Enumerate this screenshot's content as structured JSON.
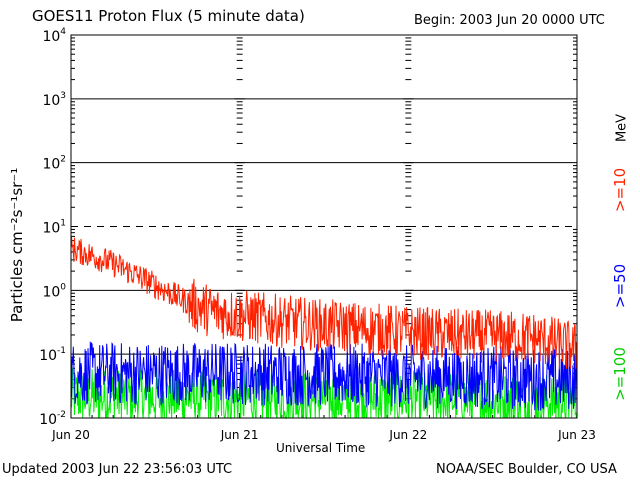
{
  "header": {
    "title": "GOES11 Proton Flux (5 minute data)",
    "begin": "Begin: 2003 Jun 20 0000 UTC"
  },
  "footer": {
    "updated": "Updated 2003 Jun 22 23:56:03 UTC",
    "credit": "NOAA/SEC Boulder, CO USA"
  },
  "chart_data": {
    "type": "line",
    "title": "GOES11 Proton Flux (5 minute data)",
    "xlabel": "Universal Time",
    "ylabel": "Particles cm⁻²s⁻¹sr⁻¹",
    "x_ticks": [
      "Jun 20",
      "Jun 21",
      "Jun 22",
      "Jun 23"
    ],
    "xlim": [
      "2003-06-20 00:00",
      "2003-06-23 00:00"
    ],
    "y_scale": "log",
    "ylim": [
      0.01,
      10000
    ],
    "y_ticks": [
      {
        "base": "10",
        "exp": "-2"
      },
      {
        "base": "10",
        "exp": "-1"
      },
      {
        "base": "10",
        "exp": "0"
      },
      {
        "base": "10",
        "exp": "1"
      },
      {
        "base": "10",
        "exp": "2"
      },
      {
        "base": "10",
        "exp": "3"
      },
      {
        "base": "10",
        "exp": "4"
      }
    ],
    "grid": "horizontal lines at each decade; 10^1 dashed",
    "units_label": "MeV",
    "series": [
      {
        "name": ">=10",
        "color": "#ff2200",
        "x_days": [
          0,
          0.125,
          0.25,
          0.375,
          0.5,
          0.625,
          0.75,
          0.875,
          1.0,
          1.25,
          1.5,
          1.75,
          2.0,
          2.25,
          2.5,
          2.75,
          3.0
        ],
        "y": [
          4.5,
          3.5,
          2.6,
          1.8,
          1.2,
          0.8,
          0.55,
          0.45,
          0.4,
          0.33,
          0.28,
          0.25,
          0.22,
          0.2,
          0.19,
          0.18,
          0.12
        ]
      },
      {
        "name": ">=50",
        "color": "#0000ff",
        "x_days": [
          0,
          1.0,
          2.0,
          3.0
        ],
        "y": [
          0.05,
          0.05,
          0.045,
          0.04
        ]
      },
      {
        "name": ">=100",
        "color": "#00ee00",
        "x_days": [
          0,
          1.0,
          2.0,
          3.0
        ],
        "y": [
          0.022,
          0.02,
          0.02,
          0.018
        ]
      }
    ]
  }
}
